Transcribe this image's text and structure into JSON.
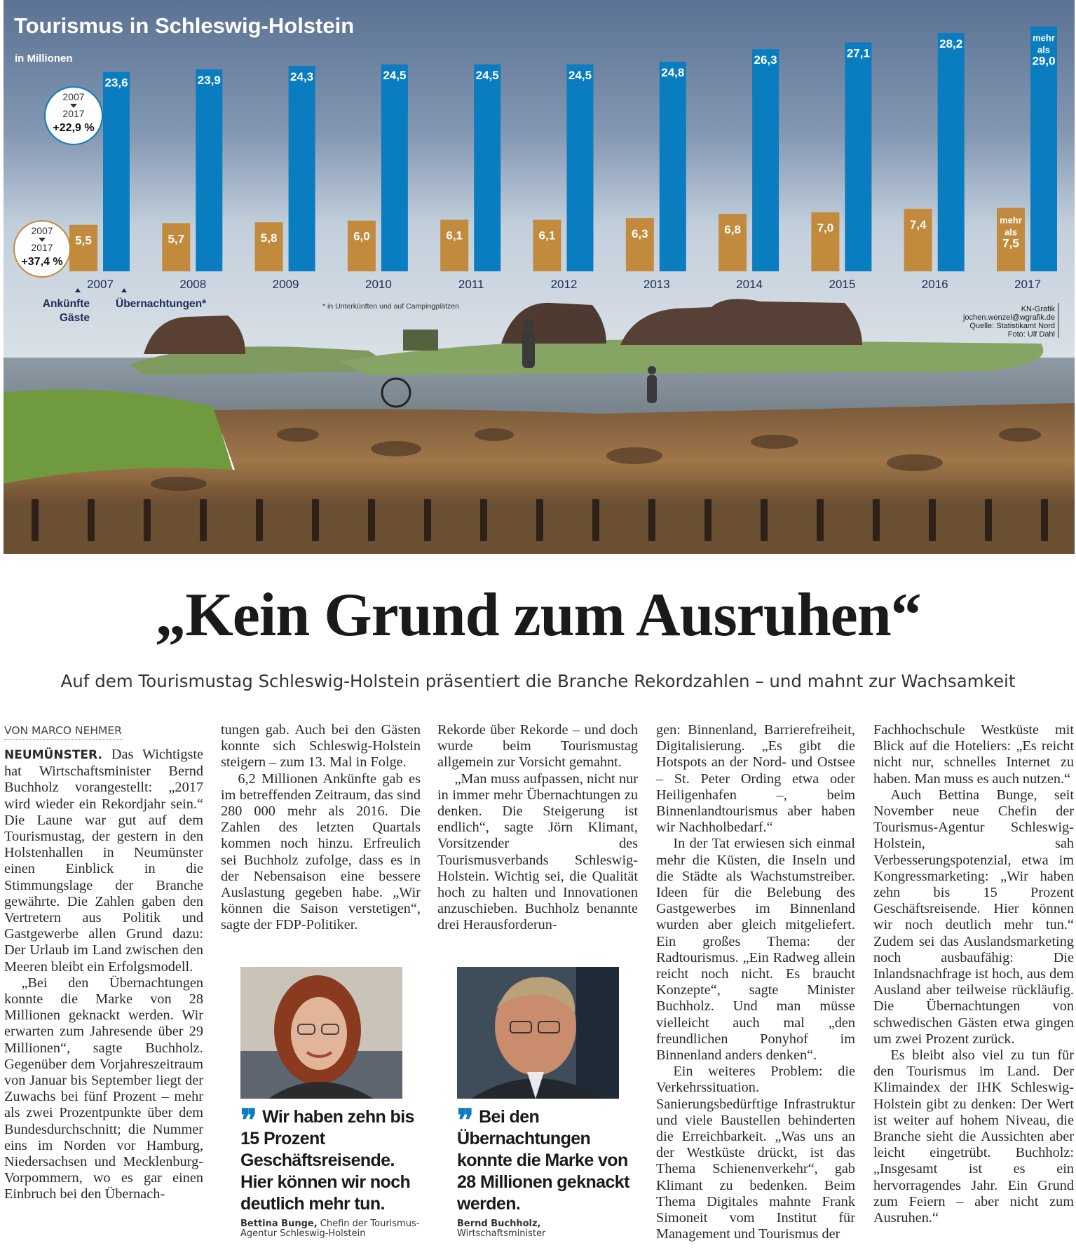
{
  "chart_data": {
    "type": "bar",
    "title": "Tourismus in Schleswig-Holstein",
    "subtitle": "in Millionen",
    "categories": [
      "2007",
      "2008",
      "2009",
      "2010",
      "2011",
      "2012",
      "2013",
      "2014",
      "2015",
      "2016",
      "2017"
    ],
    "series": [
      {
        "name": "Ankünfte Gäste",
        "color": "#c28a3c",
        "values": [
          5.5,
          5.7,
          5.8,
          6.0,
          6.1,
          6.1,
          6.3,
          6.8,
          7.0,
          7.4,
          7.5
        ],
        "labels": [
          "5,5",
          "5,7",
          "5,8",
          "6,0",
          "6,1",
          "6,1",
          "6,3",
          "6,8",
          "7,0",
          "7,4",
          "mehr|als|7,5"
        ]
      },
      {
        "name": "Übernachtungen*",
        "color": "#0a7cc0",
        "values": [
          23.6,
          23.9,
          24.3,
          24.5,
          24.5,
          24.5,
          24.8,
          26.3,
          27.1,
          28.2,
          29.0
        ],
        "labels": [
          "23,6",
          "23,9",
          "24,3",
          "24,5",
          "24,5",
          "24,5",
          "24,8",
          "26,3",
          "27,1",
          "28,2",
          "mehr|als|29,0"
        ]
      }
    ],
    "legend": {
      "arrivals_line1": "Ankünfte",
      "arrivals_line2": "Gäste",
      "overnight": "Übernachtungen*"
    },
    "badges": [
      {
        "from": "2007",
        "to": "2017",
        "change": "+22,9 %",
        "series": "Übernachtungen*"
      },
      {
        "from": "2007",
        "to": "2017",
        "change": "+37,4 %",
        "series": "Ankünfte Gäste"
      }
    ],
    "footnote": "* in Unterkünften und auf Campingplätzen",
    "credits": [
      "KN-Grafik",
      "jochen.wenzel@wgrafik.de",
      "Quelle: Statistikamt Nord",
      "Foto: Ulf Dahl"
    ],
    "ylim": [
      0,
      30
    ]
  },
  "article": {
    "headline": "„Kein Grund zum Ausruhen“",
    "subhead": "Auf dem Tourismustag Schleswig-Holstein präsentiert die Branche Rekordzahlen – und mahnt zur Wachsamkeit",
    "byline": "VON MARCO NEHMER",
    "dateline": "NEUMÜNSTER.",
    "col1": [
      "Das Wichtigste hat Wirtschaftsminister Bernd Buchholz vorangestellt: „2017 wird wieder ein Rekordjahr sein.“ Die Laune war gut auf dem Tourismustag, der gestern in den Holstenhallen in Neumünster einen Einblick in die Stimmungslage der Branche gewährte. Die Zahlen gaben den Vertretern aus Politik und Gastgewerbe allen Grund dazu: Der Urlaub im Land zwischen den Meeren bleibt ein Erfolgsmodell.",
      "„Bei den Übernachtungen konnte die Marke von 28 Millionen geknackt werden. Wir erwarten zum Jahresende über 29 Millionen“, sagte Buchholz. Gegenüber dem Vorjahreszeitraum von Januar bis September liegt der Zuwachs bei fünf Prozent – mehr als zwei Prozentpunkte über dem Bundesdurchschnitt; die Nummer eins im Norden vor Hamburg, Niedersachsen und Mecklenburg-Vorpommern, wo es gar einen Einbruch bei den Übernach-"
    ],
    "col2": [
      "tungen gab. Auch bei den Gästen konnte sich Schleswig-Holstein steigern – zum 13. Mal in Folge.",
      "6,2 Millionen Ankünfte gab es im betreffenden Zeitraum, das sind 280 000 mehr als 2016. Die Zahlen des letzten Quartals kommen noch hinzu. Erfreulich sei Buchholz zufolge, dass es in der Nebensaison eine bessere Auslastung gegeben habe. „Wir können die Saison verstetigen“, sagte der FDP-Politiker."
    ],
    "col3": [
      "Rekorde über Rekorde – und doch wurde beim Tourismustag allgemein zur Vorsicht gemahnt.",
      "„Man muss aufpassen, nicht nur in immer mehr Übernachtungen zu denken. Die Steigerung ist endlich“, sagte Jörn Klimant, Vorsitzender des Tourismusverbands Schleswig-Holstein. Wichtig sei, die Qualität hoch zu halten und Innovationen anzuschieben. Buchholz benannte drei Herausforderun-"
    ],
    "col4": [
      "gen: Binnenland, Barrierefreiheit, Digitalisierung. „Es gibt die Hotspots an der Nord- und Ostsee – St. Peter Ording etwa oder Heiligenhafen –, beim Binnenlandtourismus aber haben wir Nachholbedarf.“",
      "In der Tat erwiesen sich einmal mehr die Küsten, die Inseln und die Städte als Wachstumstreiber. Ideen für die Belebung des Gastgewerbes im Binnenland wurden aber gleich mitgeliefert. Ein großes Thema: der Radtourismus. „Ein Radweg allein reicht noch nicht. Es braucht Konzepte“, sagte Minister Buchholz. Und man müsse vielleicht auch mal „den freundlichen Ponyhof im Binnenland anders denken“.",
      "Ein weiteres Problem: die Verkehrssituation. Sanierungsbedürftige Infrastruktur und viele Baustellen behinderten die Erreichbarkeit. „Was uns an der Westküste drückt, ist das Thema Schienenverkehr“, gab Klimant zu bedenken. Beim Thema Digitales mahnte Frank Simoneit vom Institut für Management und Tourismus der"
    ],
    "col5": [
      "Fachhochschule Westküste mit Blick auf die Hoteliers: „Es reicht nicht nur, schnelles Internet zu haben. Man muss es auch nutzen.“",
      "Auch Bettina Bunge, seit November neue Chefin der Tourismus-Agentur Schleswig-Holstein, sah Verbesserungspotenzial, etwa im Kongressmarketing: „Wir haben zehn bis 15 Prozent Geschäftsreisende. Hier können wir noch deutlich mehr tun.“ Zudem sei das Auslandsmarketing noch ausbaufähig: Die Inlandsnachfrage ist hoch, aus dem Ausland aber teilweise rückläufig. Die Übernachtungen von schwedischen Gästen etwa gingen um zwei Prozent zurück.",
      "Es bleibt also viel zu tun für den Tourismus im Land. Der Klimaindex der IHK Schleswig-Holstein gibt zu denken: Der Wert ist weiter auf hohem Niveau, die Branche sieht die Aussichten aber leicht eingetrübt. Buchholz: „Insgesamt ist es ein hervorragendes Jahr. Ein Grund zum Feiern – aber nicht zum Ausruhen.“"
    ],
    "quotes": [
      {
        "text": "Wir haben zehn bis 15 Prozent Geschäftsreisende. Hier können wir noch deutlich mehr tun.",
        "name": "Bettina Bunge,",
        "role": "Chefin der Tourismus-Agentur Schleswig-Holstein"
      },
      {
        "text": "Bei den Übernachtungen konnte die Marke von 28 Millionen geknackt werden.",
        "name": "Bernd Buchholz,",
        "role": "Wirtschaftsminister"
      }
    ],
    "quote_mark": "❞"
  }
}
